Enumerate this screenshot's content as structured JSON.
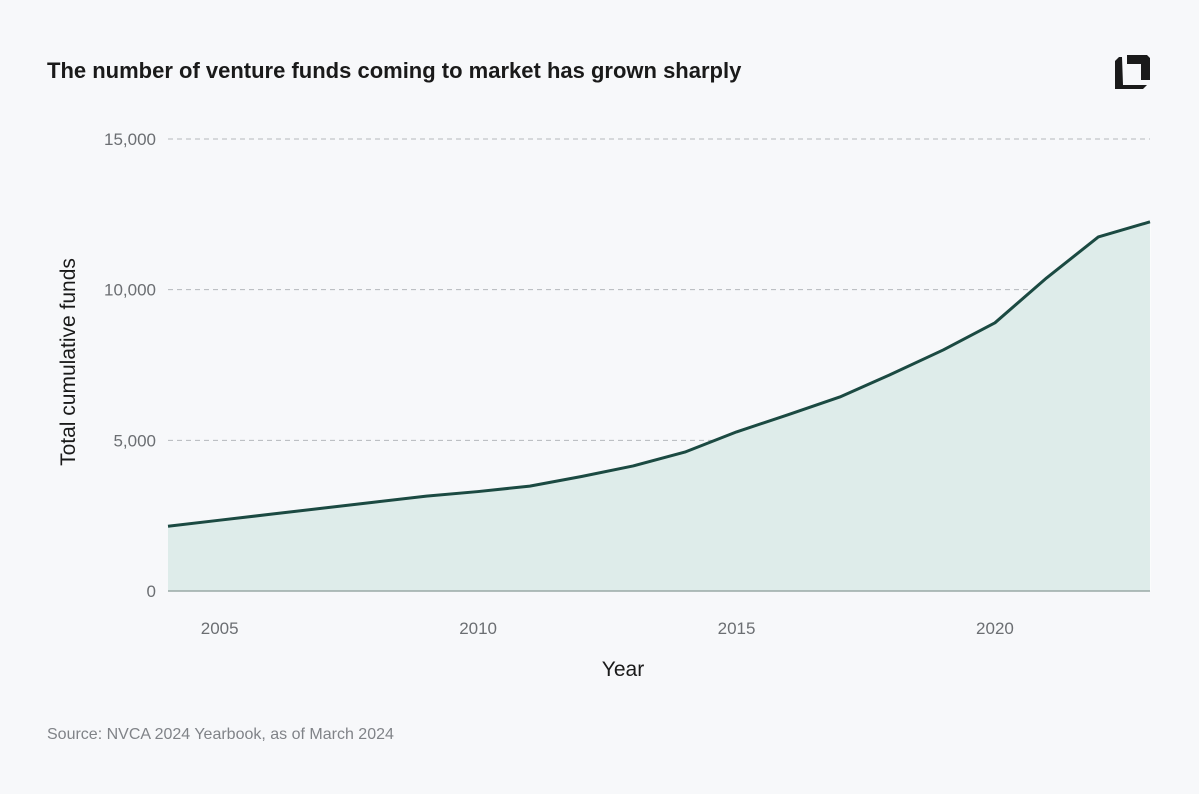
{
  "title": "The number of venture funds coming to market has grown sharply",
  "source": "Source: NVCA 2024 Yearbook, as of March 2024",
  "logo_icon": "square-bracket-logo",
  "colors": {
    "line": "#1b4a42",
    "fill": "#deecea",
    "grid": "#b5b8bc",
    "background": "#f7f8fa"
  },
  "chart_data": {
    "type": "area",
    "title": "The number of venture funds coming to market has grown sharply",
    "xlabel": "Year",
    "ylabel": "Total cumulative funds",
    "xlim": [
      2004,
      2023
    ],
    "ylim": [
      0,
      15000
    ],
    "x_ticks": [
      2005,
      2010,
      2015,
      2020
    ],
    "x_tick_labels": [
      "2005",
      "2010",
      "2015",
      "2020"
    ],
    "y_ticks": [
      0,
      5000,
      10000,
      15000
    ],
    "y_tick_labels": [
      "0",
      "5,000",
      "10,000",
      "15,000"
    ],
    "grid": "horizontal dashed",
    "legend": "none",
    "x": [
      2004,
      2005,
      2006,
      2007,
      2008,
      2009,
      2010,
      2011,
      2012,
      2013,
      2014,
      2015,
      2016,
      2017,
      2018,
      2019,
      2020,
      2021,
      2022,
      2023
    ],
    "y": [
      2150,
      2350,
      2550,
      2750,
      2950,
      3150,
      3300,
      3480,
      3800,
      4150,
      4610,
      5280,
      5850,
      6440,
      7200,
      8000,
      8900,
      10390,
      11750,
      12250
    ]
  }
}
